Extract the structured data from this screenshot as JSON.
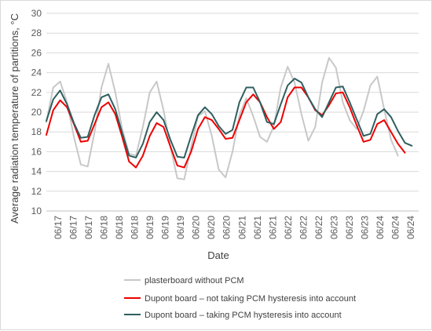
{
  "chart_data": {
    "type": "line",
    "title": "",
    "xlabel": "Date",
    "ylabel": "Average radiation temperature of partitions, °C",
    "ylim": [
      10,
      30
    ],
    "yticks": [
      10,
      12,
      14,
      16,
      18,
      20,
      22,
      24,
      26,
      28,
      30
    ],
    "categories": [
      "06/17",
      "06/17",
      "06/17",
      "06/18",
      "06/18",
      "06/18",
      "06/19",
      "06/19",
      "06/19",
      "06/20",
      "06/20",
      "06/20",
      "06/21",
      "06/21",
      "06/21",
      "06/22",
      "06/22",
      "06/22",
      "06/23",
      "06/23",
      "06/23",
      "06/24",
      "06/24",
      "06/24"
    ],
    "grid": true,
    "legend_position": "bottom",
    "series": [
      {
        "name": "plasterboard without PCM",
        "color": "#c8c8c8",
        "points": [
          [
            0,
            19.0
          ],
          [
            1,
            22.5
          ],
          [
            2,
            23.1
          ],
          [
            3,
            21.0
          ],
          [
            4,
            17.5
          ],
          [
            5,
            14.7
          ],
          [
            6,
            14.5
          ],
          [
            7,
            18.0
          ],
          [
            8,
            22.5
          ],
          [
            9,
            24.9
          ],
          [
            10,
            22.0
          ],
          [
            11,
            18.3
          ],
          [
            12,
            15.8
          ],
          [
            13,
            15.6
          ],
          [
            14,
            18.5
          ],
          [
            15,
            22.0
          ],
          [
            16,
            23.1
          ],
          [
            17,
            20.2
          ],
          [
            18,
            16.5
          ],
          [
            19,
            13.3
          ],
          [
            20,
            13.2
          ],
          [
            21,
            16.5
          ],
          [
            22,
            19.6
          ],
          [
            23,
            20.1
          ],
          [
            24,
            17.6
          ],
          [
            25,
            14.2
          ],
          [
            26,
            13.4
          ],
          [
            27,
            16.0
          ],
          [
            28,
            19.7
          ],
          [
            29,
            21.4
          ],
          [
            30,
            19.6
          ],
          [
            31,
            17.5
          ],
          [
            32,
            17.0
          ],
          [
            33,
            18.6
          ],
          [
            34,
            22.5
          ],
          [
            35,
            24.6
          ],
          [
            36,
            23.0
          ],
          [
            37,
            19.8
          ],
          [
            38,
            17.1
          ],
          [
            39,
            18.5
          ],
          [
            40,
            23.0
          ],
          [
            41,
            25.5
          ],
          [
            42,
            24.5
          ],
          [
            43,
            21.0
          ],
          [
            44,
            19.2
          ],
          [
            45,
            18.3
          ],
          [
            46,
            20.1
          ],
          [
            47,
            22.7
          ],
          [
            48,
            23.6
          ],
          [
            49,
            20.3
          ],
          [
            50,
            17.2
          ],
          [
            51,
            15.6
          ]
        ]
      },
      {
        "name": "Dupont board – not taking PCM hysteresis into account",
        "color": "#ee0000",
        "points": [
          [
            0,
            17.7
          ],
          [
            1,
            20.2
          ],
          [
            2,
            21.2
          ],
          [
            3,
            20.5
          ],
          [
            4,
            18.8
          ],
          [
            5,
            17.0
          ],
          [
            6,
            17.1
          ],
          [
            7,
            18.8
          ],
          [
            8,
            20.5
          ],
          [
            9,
            21.0
          ],
          [
            10,
            19.8
          ],
          [
            11,
            17.5
          ],
          [
            12,
            15.0
          ],
          [
            13,
            14.4
          ],
          [
            14,
            15.6
          ],
          [
            15,
            17.6
          ],
          [
            16,
            18.9
          ],
          [
            17,
            18.5
          ],
          [
            18,
            16.5
          ],
          [
            19,
            14.6
          ],
          [
            20,
            14.4
          ],
          [
            21,
            16.0
          ],
          [
            22,
            18.3
          ],
          [
            23,
            19.5
          ],
          [
            24,
            19.2
          ],
          [
            25,
            18.3
          ],
          [
            26,
            17.3
          ],
          [
            27,
            17.4
          ],
          [
            28,
            19.2
          ],
          [
            29,
            21.0
          ],
          [
            30,
            21.8
          ],
          [
            31,
            21.0
          ],
          [
            32,
            19.5
          ],
          [
            33,
            18.3
          ],
          [
            34,
            19.0
          ],
          [
            35,
            21.5
          ],
          [
            36,
            22.5
          ],
          [
            37,
            22.5
          ],
          [
            38,
            21.5
          ],
          [
            39,
            20.2
          ],
          [
            40,
            19.7
          ],
          [
            41,
            20.7
          ],
          [
            42,
            21.9
          ],
          [
            43,
            22.0
          ],
          [
            44,
            20.5
          ],
          [
            45,
            18.7
          ],
          [
            46,
            17.0
          ],
          [
            47,
            17.2
          ],
          [
            48,
            18.8
          ],
          [
            49,
            19.2
          ],
          [
            50,
            18.0
          ],
          [
            51,
            16.8
          ],
          [
            52,
            15.9
          ]
        ]
      },
      {
        "name": "Dupont board – taking PCM hysteresis into account",
        "color": "#2f5f5f",
        "points": [
          [
            0,
            19.1
          ],
          [
            1,
            21.3
          ],
          [
            2,
            22.2
          ],
          [
            3,
            20.8
          ],
          [
            4,
            18.9
          ],
          [
            5,
            17.4
          ],
          [
            6,
            17.5
          ],
          [
            7,
            19.7
          ],
          [
            8,
            21.5
          ],
          [
            9,
            21.8
          ],
          [
            10,
            20.3
          ],
          [
            11,
            17.9
          ],
          [
            12,
            15.6
          ],
          [
            13,
            15.4
          ],
          [
            14,
            16.8
          ],
          [
            15,
            19.0
          ],
          [
            16,
            20.0
          ],
          [
            17,
            19.2
          ],
          [
            18,
            17.2
          ],
          [
            19,
            15.5
          ],
          [
            20,
            15.4
          ],
          [
            21,
            17.6
          ],
          [
            22,
            19.7
          ],
          [
            23,
            20.5
          ],
          [
            24,
            19.8
          ],
          [
            25,
            18.6
          ],
          [
            26,
            17.8
          ],
          [
            27,
            18.2
          ],
          [
            28,
            21.0
          ],
          [
            29,
            22.5
          ],
          [
            30,
            22.5
          ],
          [
            31,
            21.0
          ],
          [
            32,
            19.0
          ],
          [
            33,
            18.8
          ],
          [
            34,
            20.8
          ],
          [
            35,
            22.7
          ],
          [
            36,
            23.4
          ],
          [
            37,
            23.0
          ],
          [
            38,
            21.5
          ],
          [
            39,
            20.3
          ],
          [
            40,
            19.5
          ],
          [
            41,
            21.0
          ],
          [
            42,
            22.5
          ],
          [
            43,
            22.6
          ],
          [
            44,
            21.0
          ],
          [
            45,
            19.3
          ],
          [
            46,
            17.6
          ],
          [
            47,
            17.8
          ],
          [
            48,
            19.8
          ],
          [
            49,
            20.3
          ],
          [
            50,
            19.5
          ],
          [
            51,
            18.1
          ],
          [
            52,
            16.9
          ],
          [
            53,
            16.6
          ]
        ]
      }
    ]
  }
}
